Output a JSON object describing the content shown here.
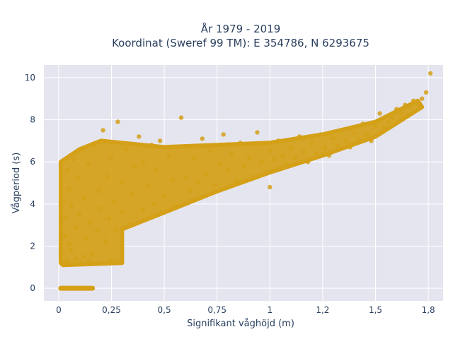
{
  "chart_data": {
    "type": "scatter",
    "title_line1": "År 1979 - 2019",
    "title_line2": "Koordinat (Sweref 99 TM): E 354786, N 6293675",
    "xlabel": "Signifikant våghöjd (m)",
    "ylabel": "Vågperiod (s)",
    "xlim": [
      -0.07,
      1.82
    ],
    "ylim": [
      -0.6,
      10.6
    ],
    "x_ticks": [
      0,
      0.25,
      0.5,
      0.75,
      1,
      1.25,
      1.5,
      1.75
    ],
    "x_tick_labels": [
      "0",
      "0,25",
      "0,5",
      "0,75",
      "1",
      "1,2",
      "1,5",
      "1,8"
    ],
    "y_ticks": [
      0,
      2,
      4,
      6,
      8,
      10
    ],
    "y_tick_labels": [
      "0",
      "2",
      "4",
      "6",
      "8",
      "10"
    ],
    "grid": true,
    "marker_color": "#D4A017",
    "plot_bg": "#E5E5F0",
    "points": [
      [
        0.01,
        1.6
      ],
      [
        0.02,
        1.2
      ],
      [
        0.02,
        4.1
      ],
      [
        0.03,
        2.5
      ],
      [
        0.03,
        3.4
      ],
      [
        0.04,
        1.3
      ],
      [
        0.04,
        5.6
      ],
      [
        0.05,
        0.0
      ],
      [
        0.05,
        2.1
      ],
      [
        0.05,
        4.7
      ],
      [
        0.06,
        1.8
      ],
      [
        0.06,
        3.9
      ],
      [
        0.07,
        0.0
      ],
      [
        0.07,
        6.1
      ],
      [
        0.08,
        1.4
      ],
      [
        0.08,
        2.9
      ],
      [
        0.09,
        0.0
      ],
      [
        0.09,
        5.2
      ],
      [
        0.1,
        1.2
      ],
      [
        0.1,
        3.5
      ],
      [
        0.11,
        0.0
      ],
      [
        0.11,
        6.5
      ],
      [
        0.12,
        1.5
      ],
      [
        0.12,
        4.3
      ],
      [
        0.13,
        0.0
      ],
      [
        0.13,
        2.4
      ],
      [
        0.14,
        1.3
      ],
      [
        0.14,
        5.9
      ],
      [
        0.15,
        0.0
      ],
      [
        0.15,
        3.1
      ],
      [
        0.16,
        1.6
      ],
      [
        0.17,
        6.8
      ],
      [
        0.18,
        2.7
      ],
      [
        0.19,
        4.6
      ],
      [
        0.2,
        1.2
      ],
      [
        0.2,
        3.8
      ],
      [
        0.21,
        7.5
      ],
      [
        0.22,
        2.2
      ],
      [
        0.23,
        5.3
      ],
      [
        0.24,
        3.3
      ],
      [
        0.25,
        1.3
      ],
      [
        0.25,
        6.2
      ],
      [
        0.26,
        4.1
      ],
      [
        0.27,
        2.8
      ],
      [
        0.28,
        1.2
      ],
      [
        0.28,
        7.9
      ],
      [
        0.3,
        3.6
      ],
      [
        0.3,
        5.0
      ],
      [
        0.32,
        6.6
      ],
      [
        0.33,
        3.0
      ],
      [
        0.35,
        4.5
      ],
      [
        0.36,
        5.8
      ],
      [
        0.38,
        7.2
      ],
      [
        0.4,
        3.7
      ],
      [
        0.4,
        6.0
      ],
      [
        0.42,
        4.9
      ],
      [
        0.44,
        6.8
      ],
      [
        0.45,
        4.0
      ],
      [
        0.46,
        5.6
      ],
      [
        0.48,
        7.0
      ],
      [
        0.5,
        4.4
      ],
      [
        0.52,
        6.3
      ],
      [
        0.54,
        5.1
      ],
      [
        0.55,
        3.9
      ],
      [
        0.56,
        6.7
      ],
      [
        0.58,
        8.1
      ],
      [
        0.6,
        5.3
      ],
      [
        0.62,
        4.6
      ],
      [
        0.64,
        6.2
      ],
      [
        0.66,
        5.0
      ],
      [
        0.68,
        7.1
      ],
      [
        0.7,
        5.4
      ],
      [
        0.72,
        6.5
      ],
      [
        0.74,
        4.9
      ],
      [
        0.76,
        5.9
      ],
      [
        0.78,
        7.3
      ],
      [
        0.8,
        5.6
      ],
      [
        0.82,
        6.4
      ],
      [
        0.84,
        5.1
      ],
      [
        0.86,
        6.9
      ],
      [
        0.88,
        5.8
      ],
      [
        0.9,
        6.2
      ],
      [
        0.92,
        5.3
      ],
      [
        0.94,
        7.4
      ],
      [
        0.96,
        6.0
      ],
      [
        0.98,
        5.5
      ],
      [
        1.0,
        6.5
      ],
      [
        1.0,
        4.8
      ],
      [
        1.02,
        6.1
      ],
      [
        1.04,
        7.0
      ],
      [
        1.06,
        6.3
      ],
      [
        1.08,
        5.9
      ],
      [
        1.1,
        6.7
      ],
      [
        1.12,
        6.2
      ],
      [
        1.14,
        7.2
      ],
      [
        1.16,
        6.5
      ],
      [
        1.18,
        6.0
      ],
      [
        1.2,
        6.9
      ],
      [
        1.22,
        6.4
      ],
      [
        1.24,
        7.3
      ],
      [
        1.26,
        6.7
      ],
      [
        1.28,
        6.3
      ],
      [
        1.3,
        7.1
      ],
      [
        1.32,
        6.8
      ],
      [
        1.34,
        7.5
      ],
      [
        1.36,
        7.0
      ],
      [
        1.38,
        6.7
      ],
      [
        1.4,
        7.4
      ],
      [
        1.42,
        7.1
      ],
      [
        1.44,
        7.8
      ],
      [
        1.46,
        7.3
      ],
      [
        1.48,
        7.0
      ],
      [
        1.5,
        7.7
      ],
      [
        1.52,
        8.3
      ],
      [
        1.54,
        7.6
      ],
      [
        1.56,
        7.9
      ],
      [
        1.58,
        8.1
      ],
      [
        1.6,
        8.5
      ],
      [
        1.62,
        8.3
      ],
      [
        1.64,
        8.7
      ],
      [
        1.66,
        8.6
      ],
      [
        1.68,
        8.9
      ],
      [
        1.7,
        8.8
      ],
      [
        1.72,
        9.0
      ],
      [
        1.74,
        9.3
      ],
      [
        1.76,
        10.2
      ]
    ]
  }
}
